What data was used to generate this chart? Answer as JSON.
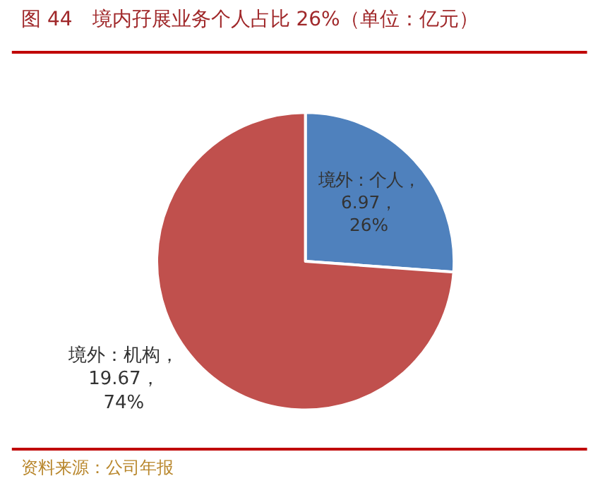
{
  "chart_data": {
    "type": "pie",
    "title": "图 44　境内孖展业务个人占比 26%（单位：亿元）",
    "categories": [
      "境外：个人",
      "境外：机构"
    ],
    "values": [
      6.97,
      19.67
    ],
    "value_labels": [
      "，6.97，26%",
      "，19.67，74%"
    ],
    "colors": [
      "#4f81bd",
      "#c0504d"
    ],
    "annotations": [
      "资料来源：公司年报"
    ],
    "legend": false
  }
}
